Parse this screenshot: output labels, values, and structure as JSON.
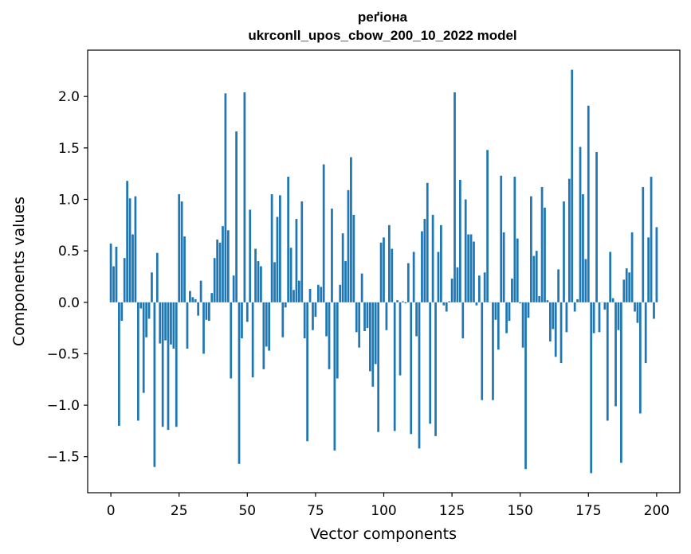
{
  "chart_data": {
    "type": "bar",
    "title": "реґіона",
    "subtitle": "ukrconll_upos_cbow_200_10_2022 model",
    "xlabel": "Vector components",
    "ylabel": "Components values",
    "xlim": [
      -8.5,
      208.5
    ],
    "ylim": [
      -1.85,
      2.45
    ],
    "xticks": [
      0,
      25,
      50,
      75,
      100,
      125,
      150,
      175,
      200
    ],
    "yticks": [
      -1.5,
      -1.0,
      -0.5,
      0.0,
      0.5,
      1.0,
      1.5,
      2.0
    ],
    "ytick_labels": [
      "−1.5",
      "−1.0",
      "−0.5",
      "0.0",
      "0.5",
      "1.0",
      "1.5",
      "2.0"
    ],
    "grid": false,
    "bar_color": "#1f77b4",
    "values": [
      0.57,
      0.35,
      0.54,
      -1.2,
      -0.18,
      0.43,
      1.18,
      1.01,
      0.66,
      1.03,
      -1.15,
      -0.06,
      -0.88,
      -0.34,
      -0.16,
      0.29,
      -1.6,
      0.48,
      -0.4,
      -1.21,
      -0.37,
      -1.24,
      -0.41,
      -0.45,
      -1.21,
      1.05,
      0.98,
      0.64,
      -0.45,
      0.11,
      0.05,
      0.03,
      -0.13,
      0.21,
      -0.5,
      -0.17,
      -0.18,
      0.09,
      0.43,
      0.61,
      0.58,
      0.74,
      2.03,
      0.7,
      -0.74,
      0.26,
      1.66,
      -1.57,
      -0.35,
      2.04,
      -0.19,
      0.9,
      -0.73,
      0.52,
      0.4,
      0.35,
      -0.65,
      -0.43,
      -0.47,
      1.05,
      0.39,
      0.83,
      1.04,
      -0.34,
      -0.05,
      1.22,
      0.53,
      0.12,
      0.81,
      0.21,
      0.98,
      -0.35,
      -1.35,
      0.13,
      -0.27,
      -0.14,
      0.17,
      0.15,
      1.34,
      -0.33,
      -0.65,
      0.91,
      -1.44,
      -0.74,
      0.17,
      0.67,
      0.4,
      1.09,
      1.41,
      0.85,
      -0.29,
      -0.44,
      0.28,
      -0.28,
      -0.25,
      -0.67,
      -0.82,
      -0.6,
      -1.26,
      0.58,
      0.63,
      -0.27,
      0.75,
      0.52,
      -1.25,
      0.02,
      -0.71,
      0.01,
      -0.01,
      0.38,
      -1.28,
      0.49,
      -0.33,
      -1.42,
      0.69,
      0.81,
      1.16,
      -1.18,
      0.85,
      -1.3,
      0.49,
      0.75,
      -0.03,
      -0.09,
      0.01,
      0.23,
      2.04,
      0.34,
      1.19,
      -0.35,
      1.0,
      0.66,
      0.66,
      0.59,
      -0.03,
      0.26,
      -0.95,
      0.29,
      1.48,
      0.0,
      -0.95,
      -0.17,
      -0.46,
      1.23,
      0.68,
      -0.3,
      -0.18,
      0.23,
      1.22,
      0.62,
      -0.01,
      -0.44,
      -1.62,
      -0.15,
      1.03,
      0.45,
      0.5,
      0.06,
      1.12,
      0.92,
      0.02,
      -0.38,
      -0.26,
      -0.53,
      0.32,
      -0.59,
      0.98,
      -0.29,
      1.2,
      2.26,
      -0.09,
      0.03,
      1.51,
      1.05,
      0.42,
      1.91,
      -1.66,
      -0.3,
      1.46,
      -0.29,
      0.0,
      -0.07,
      -1.15,
      0.49,
      0.04,
      -1.01,
      -0.27,
      -1.56,
      0.22,
      0.33,
      0.29,
      0.68,
      -0.09,
      -0.2,
      -1.08,
      1.12,
      -0.59,
      0.63,
      1.22,
      -0.16,
      0.73
    ]
  }
}
